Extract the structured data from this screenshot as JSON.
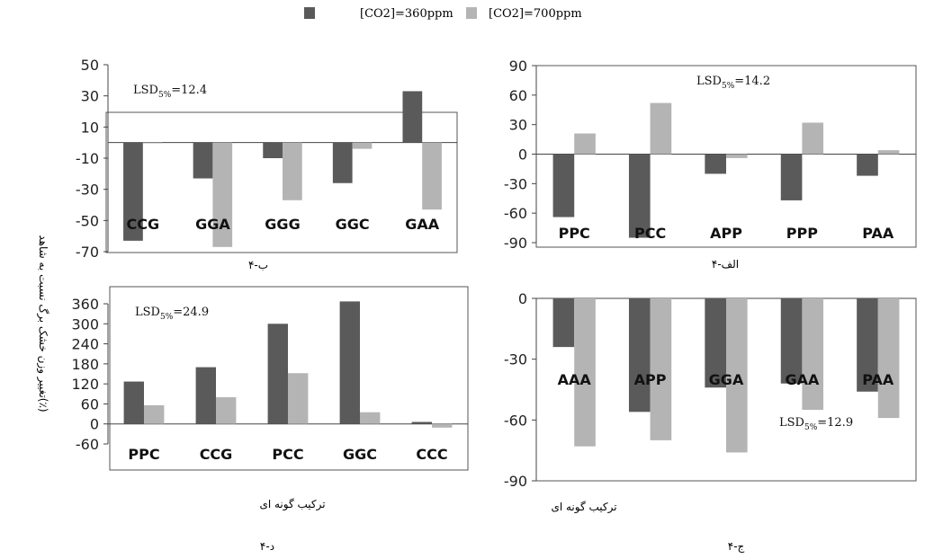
{
  "legend": {
    "series1_label": "[CO2]=360ppm",
    "series2_label": "[CO2]=700ppm",
    "series1_color": "#5a5a5a",
    "series2_color": "#b4b4b4"
  },
  "ylabel": "تغییر وزن خشک برگ نسبت به شاهد(٪)",
  "chart_data": [
    {
      "type": "bar",
      "caption": "ب-۴",
      "lsd": "LSD5%=12.4",
      "categories": [
        "CCG",
        "GGA",
        "GGG",
        "GGC",
        "GAA"
      ],
      "ylim": [
        -70,
        50
      ],
      "yticks": [
        50,
        30,
        10,
        -10,
        -30,
        -50,
        -70
      ],
      "series": [
        {
          "values": [
            -63,
            -23,
            -10,
            -26,
            33
          ]
        },
        {
          "values": [
            0,
            -67,
            -37,
            -4,
            -43
          ]
        }
      ]
    },
    {
      "type": "bar",
      "caption": "الف-۴",
      "lsd": "LSD5%=14.2",
      "categories": [
        "PPC",
        "PCC",
        "APP",
        "PPP",
        "PAA"
      ],
      "ylim": [
        -90,
        90
      ],
      "yticks": [
        90,
        60,
        30,
        0,
        -30,
        -60,
        -90
      ],
      "series": [
        {
          "values": [
            -64,
            -85,
            -20,
            -47,
            -22
          ]
        },
        {
          "values": [
            21,
            52,
            -4,
            32,
            4
          ]
        }
      ]
    },
    {
      "type": "bar",
      "caption": "د-۴",
      "xlabel": "ترکیب گونه ای",
      "lsd": "LSD5%=24.9",
      "categories": [
        "PPC",
        "CCG",
        "PCC",
        "GGC",
        "CCC"
      ],
      "ylim": [
        -60,
        360
      ],
      "yticks": [
        360,
        300,
        240,
        180,
        120,
        60,
        0,
        -60
      ],
      "series": [
        {
          "values": [
            127,
            170,
            300,
            367,
            6
          ]
        },
        {
          "values": [
            56,
            80,
            152,
            35,
            -11
          ]
        }
      ]
    },
    {
      "type": "bar",
      "caption": "ج-۴",
      "xlabel": "ترکیب گونه ای",
      "lsd": "LSD5%=12.9",
      "categories": [
        "AAA",
        "APP",
        "GGA",
        "GAA",
        "PAA"
      ],
      "ylim": [
        -90,
        0
      ],
      "yticks": [
        0,
        -30,
        -60,
        -90
      ],
      "series": [
        {
          "values": [
            -24,
            -56,
            -44,
            -42,
            -46
          ]
        },
        {
          "values": [
            -73,
            -70,
            -76,
            -55,
            -59
          ]
        }
      ]
    }
  ]
}
